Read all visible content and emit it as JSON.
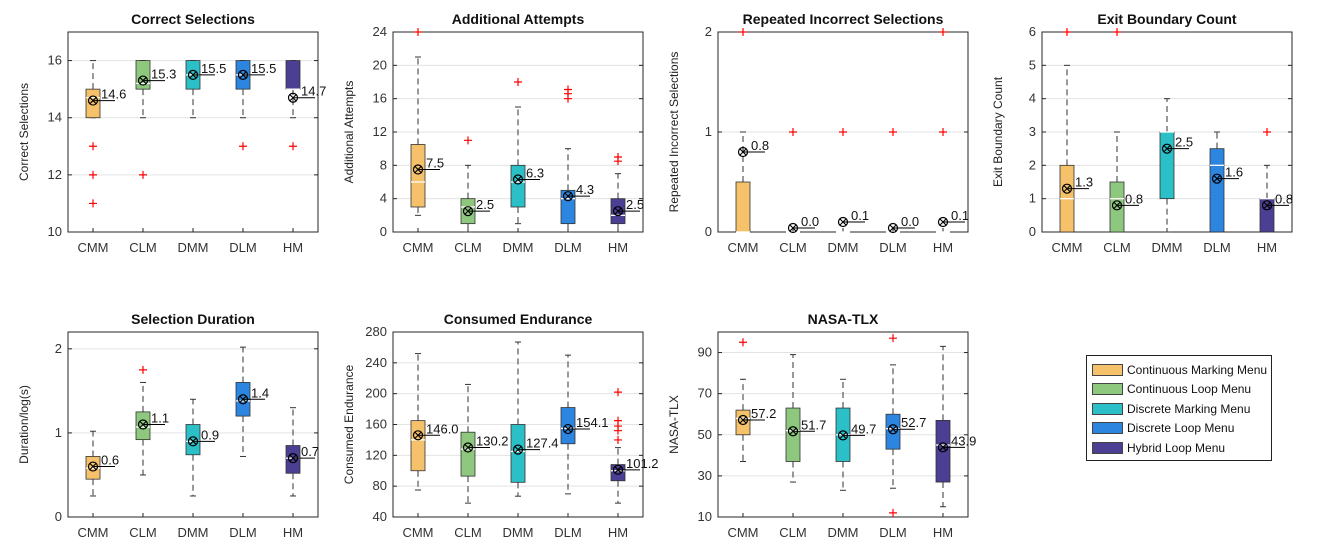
{
  "colors": {
    "CMM": "#f5c26b",
    "CLM": "#8ec77e",
    "DMM": "#2bbfc8",
    "DLM": "#2c86e0",
    "HM": "#4a3f93",
    "outlier": "#ff0000",
    "mean_marker": "#000000"
  },
  "legend": {
    "items": [
      {
        "key": "CMM",
        "label": "Continuous Marking Menu"
      },
      {
        "key": "CLM",
        "label": "Continuous Loop Menu"
      },
      {
        "key": "DMM",
        "label": "Discrete Marking Menu"
      },
      {
        "key": "DLM",
        "label": "Discrete Loop Menu"
      },
      {
        "key": "HM",
        "label": "Hybrid Loop Menu"
      }
    ]
  },
  "chart_data": [
    {
      "type": "box",
      "title": "Correct Selections",
      "xlabel": "",
      "ylabel": "Correct Selections",
      "ylim": [
        10,
        17
      ],
      "yticks": [
        10,
        12,
        14,
        16
      ],
      "grid": "horizontal",
      "categories": [
        "CMM",
        "CLM",
        "DMM",
        "DLM",
        "HM"
      ],
      "boxes": [
        {
          "category": "CMM",
          "min": 14,
          "q1": 14,
          "median": 14.7,
          "q3": 15,
          "max": 16,
          "mean": 14.6,
          "mean_label": "14.6",
          "outliers": [
            13,
            12,
            11
          ]
        },
        {
          "category": "CLM",
          "min": 14,
          "q1": 15,
          "median": 15.2,
          "q3": 16,
          "max": 16,
          "mean": 15.3,
          "mean_label": "15.3",
          "outliers": [
            12
          ]
        },
        {
          "category": "DMM",
          "min": 14,
          "q1": 15,
          "median": 15.5,
          "q3": 16,
          "max": 16,
          "mean": 15.5,
          "mean_label": "15.5",
          "outliers": []
        },
        {
          "category": "DLM",
          "min": 14,
          "q1": 15,
          "median": 15.5,
          "q3": 16,
          "max": 16,
          "mean": 15.5,
          "mean_label": "15.5",
          "outliers": [
            13
          ]
        },
        {
          "category": "HM",
          "min": 14,
          "q1": 15,
          "median": 15,
          "q3": 16,
          "max": 16,
          "mean": 14.7,
          "mean_label": "14.7",
          "outliers": [
            13
          ]
        }
      ]
    },
    {
      "type": "box",
      "title": "Additional Attempts",
      "xlabel": "",
      "ylabel": "Additional Attempts",
      "ylim": [
        0,
        24
      ],
      "yticks": [
        0,
        4,
        8,
        12,
        16,
        20,
        24
      ],
      "grid": "horizontal",
      "categories": [
        "CMM",
        "CLM",
        "DMM",
        "DLM",
        "HM"
      ],
      "boxes": [
        {
          "category": "CMM",
          "min": 2,
          "q1": 3,
          "median": 6,
          "q3": 10.5,
          "max": 21,
          "mean": 7.5,
          "mean_label": "7.5",
          "outliers": [
            24
          ]
        },
        {
          "category": "CLM",
          "min": 0,
          "q1": 1,
          "median": 3,
          "q3": 4,
          "max": 8,
          "mean": 2.5,
          "mean_label": "2.5",
          "outliers": [
            11
          ]
        },
        {
          "category": "DMM",
          "min": 1,
          "q1": 3,
          "median": 6,
          "q3": 8,
          "max": 15,
          "mean": 6.3,
          "mean_label": "6.3",
          "outliers": [
            18
          ]
        },
        {
          "category": "DLM",
          "min": 0,
          "q1": 1,
          "median": 4,
          "q3": 5,
          "max": 10,
          "mean": 4.3,
          "mean_label": "4.3",
          "outliers": [
            16,
            16.6,
            17.1
          ]
        },
        {
          "category": "HM",
          "min": 0,
          "q1": 1,
          "median": 2,
          "q3": 4,
          "max": 7,
          "mean": 2.5,
          "mean_label": "2.5",
          "outliers": [
            8.5,
            9
          ]
        }
      ]
    },
    {
      "type": "box",
      "title": "Repeated Incorrect Selections",
      "xlabel": "",
      "ylabel": "Repeated Incorrect Selections",
      "ylim": [
        0,
        2
      ],
      "yticks": [
        0,
        1,
        2
      ],
      "grid": "horizontal",
      "categories": [
        "CMM",
        "CLM",
        "DMM",
        "DLM",
        "HM"
      ],
      "boxes": [
        {
          "category": "CMM",
          "min": 0,
          "q1": 0,
          "median": 0,
          "q3": 0.5,
          "max": 1,
          "mean": 0.8,
          "mean_label": "0.8",
          "outliers": [
            2
          ]
        },
        {
          "category": "CLM",
          "min": 0,
          "q1": 0,
          "median": 0,
          "q3": 0,
          "max": 0,
          "mean": 0.04,
          "mean_label": "0.0",
          "outliers": [
            1
          ]
        },
        {
          "category": "DMM",
          "min": 0,
          "q1": 0,
          "median": 0,
          "q3": 0,
          "max": 0,
          "mean": 0.1,
          "mean_label": "0.1",
          "outliers": [
            1
          ]
        },
        {
          "category": "DLM",
          "min": 0,
          "q1": 0,
          "median": 0,
          "q3": 0,
          "max": 0,
          "mean": 0.04,
          "mean_label": "0.0",
          "outliers": [
            1
          ]
        },
        {
          "category": "HM",
          "min": 0,
          "q1": 0,
          "median": 0,
          "q3": 0,
          "max": 0,
          "mean": 0.1,
          "mean_label": "0.1",
          "outliers": [
            1,
            2
          ]
        }
      ]
    },
    {
      "type": "box",
      "title": "Exit Boundary Count",
      "xlabel": "",
      "ylabel": "Exit Boundary Count",
      "ylim": [
        0,
        6
      ],
      "yticks": [
        0,
        1,
        2,
        3,
        4,
        5,
        6
      ],
      "grid": "horizontal",
      "categories": [
        "CMM",
        "CLM",
        "DMM",
        "DLM",
        "HM"
      ],
      "boxes": [
        {
          "category": "CMM",
          "min": 0,
          "q1": 0,
          "median": 1,
          "q3": 2,
          "max": 5,
          "mean": 1.3,
          "mean_label": "1.3",
          "outliers": [
            6
          ]
        },
        {
          "category": "CLM",
          "min": 0,
          "q1": 0,
          "median": 1,
          "q3": 1.5,
          "max": 3,
          "mean": 0.8,
          "mean_label": "0.8",
          "outliers": [
            6
          ]
        },
        {
          "category": "DMM",
          "min": 0,
          "q1": 1,
          "median": 3,
          "q3": 3,
          "max": 4,
          "mean": 2.5,
          "mean_label": "2.5",
          "outliers": []
        },
        {
          "category": "DLM",
          "min": 0,
          "q1": 0,
          "median": 2,
          "q3": 2.5,
          "max": 3,
          "mean": 1.6,
          "mean_label": "1.6",
          "outliers": []
        },
        {
          "category": "HM",
          "min": 0,
          "q1": 0,
          "median": 1,
          "q3": 1,
          "max": 2,
          "mean": 0.8,
          "mean_label": "0.8",
          "outliers": [
            3
          ]
        }
      ]
    },
    {
      "type": "box",
      "title": "Selection Duration",
      "xlabel": "",
      "ylabel": "Duration/log(s)",
      "ylim": [
        0,
        2.2
      ],
      "yticks": [
        0,
        1,
        2
      ],
      "grid": "horizontal",
      "categories": [
        "CMM",
        "CLM",
        "DMM",
        "DLM",
        "HM"
      ],
      "boxes": [
        {
          "category": "CMM",
          "min": 0.25,
          "q1": 0.45,
          "median": 0.58,
          "q3": 0.72,
          "max": 1.02,
          "mean": 0.6,
          "mean_label": "0.6",
          "outliers": []
        },
        {
          "category": "CLM",
          "min": 0.5,
          "q1": 0.92,
          "median": 1.07,
          "q3": 1.25,
          "max": 1.6,
          "mean": 1.1,
          "mean_label": "1.1",
          "outliers": [
            1.75
          ]
        },
        {
          "category": "DMM",
          "min": 0.25,
          "q1": 0.74,
          "median": 0.9,
          "q3": 1.1,
          "max": 1.4,
          "mean": 0.9,
          "mean_label": "0.9",
          "outliers": []
        },
        {
          "category": "DLM",
          "min": 0.72,
          "q1": 1.2,
          "median": 1.38,
          "q3": 1.6,
          "max": 2.02,
          "mean": 1.4,
          "mean_label": "1.4",
          "outliers": []
        },
        {
          "category": "HM",
          "min": 0.25,
          "q1": 0.52,
          "median": 0.7,
          "q3": 0.85,
          "max": 1.3,
          "mean": 0.7,
          "mean_label": "0.7",
          "outliers": []
        }
      ]
    },
    {
      "type": "box",
      "title": "Consumed Endurance",
      "xlabel": "",
      "ylabel": "Consumed Endurance",
      "ylim": [
        40,
        280
      ],
      "yticks": [
        40,
        80,
        120,
        160,
        200,
        240,
        280
      ],
      "grid": "horizontal",
      "categories": [
        "CMM",
        "CLM",
        "DMM",
        "DLM",
        "HM"
      ],
      "boxes": [
        {
          "category": "CMM",
          "min": 75,
          "q1": 100,
          "median": 140,
          "q3": 165,
          "max": 252,
          "mean": 146.0,
          "mean_label": "146.0",
          "outliers": []
        },
        {
          "category": "CLM",
          "min": 58,
          "q1": 93,
          "median": 128,
          "q3": 150,
          "max": 212,
          "mean": 130.2,
          "mean_label": "130.2",
          "outliers": []
        },
        {
          "category": "DMM",
          "min": 67,
          "q1": 85,
          "median": 125,
          "q3": 160,
          "max": 267,
          "mean": 127.4,
          "mean_label": "127.4",
          "outliers": []
        },
        {
          "category": "DLM",
          "min": 70,
          "q1": 135,
          "median": 155,
          "q3": 182,
          "max": 250,
          "mean": 154.1,
          "mean_label": "154.1",
          "outliers": []
        },
        {
          "category": "HM",
          "min": 58,
          "q1": 87,
          "median": 100,
          "q3": 108,
          "max": 130,
          "mean": 101.2,
          "mean_label": "101.2",
          "outliers": [
            140,
            152,
            158,
            165,
            202
          ]
        }
      ]
    },
    {
      "type": "box",
      "title": "NASA-TLX",
      "xlabel": "",
      "ylabel": "NASA-TLX",
      "ylim": [
        10,
        100
      ],
      "yticks": [
        10,
        30,
        50,
        70,
        90
      ],
      "grid": "horizontal",
      "categories": [
        "CMM",
        "CLM",
        "DMM",
        "DLM",
        "HM"
      ],
      "boxes": [
        {
          "category": "CMM",
          "min": 37,
          "q1": 50,
          "median": 58,
          "q3": 62,
          "max": 77,
          "mean": 57.2,
          "mean_label": "57.2",
          "outliers": [
            95
          ]
        },
        {
          "category": "CLM",
          "min": 27,
          "q1": 37,
          "median": 52,
          "q3": 63,
          "max": 89,
          "mean": 51.7,
          "mean_label": "51.7",
          "outliers": []
        },
        {
          "category": "DMM",
          "min": 23,
          "q1": 37,
          "median": 50,
          "q3": 63,
          "max": 77,
          "mean": 49.7,
          "mean_label": "49.7",
          "outliers": []
        },
        {
          "category": "DLM",
          "min": 24,
          "q1": 43,
          "median": 53,
          "q3": 60,
          "max": 84,
          "mean": 52.7,
          "mean_label": "52.7",
          "outliers": [
            97,
            12
          ]
        },
        {
          "category": "HM",
          "min": 15,
          "q1": 27,
          "median": 45,
          "q3": 57,
          "max": 93,
          "mean": 43.9,
          "mean_label": "43.9",
          "outliers": []
        }
      ]
    }
  ]
}
